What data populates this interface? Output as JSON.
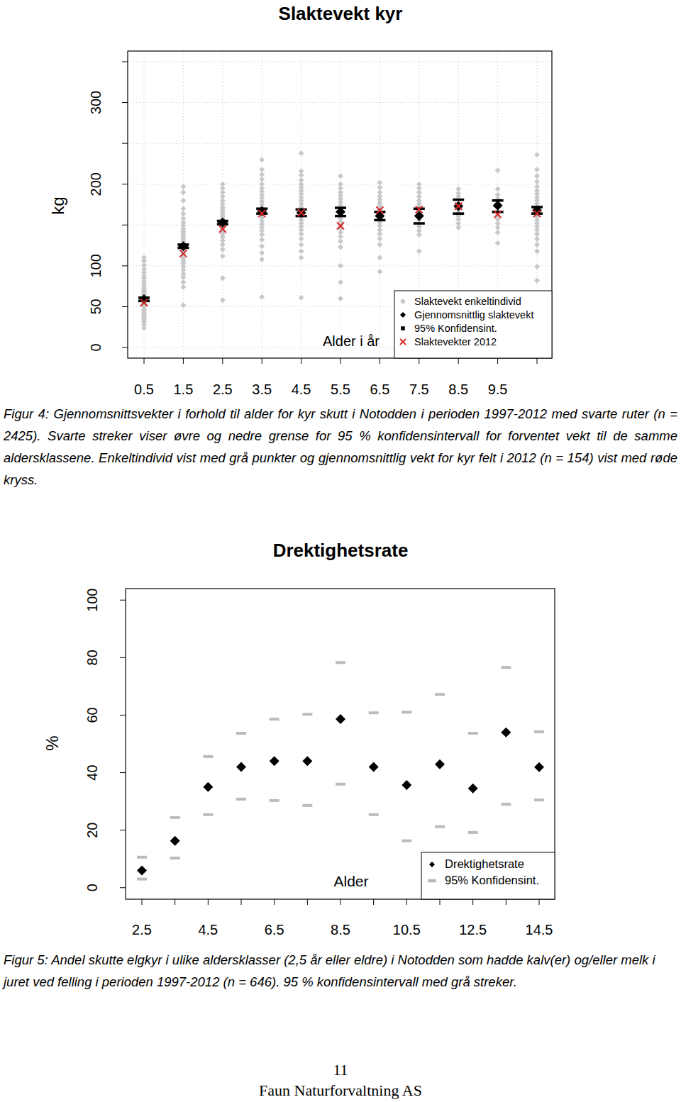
{
  "chart_data": [
    {
      "type": "scatter",
      "title": "Slaktevekt kyr",
      "ylabel": "kg",
      "xlabel": "Alder i år",
      "caption": "Figur 4: Gjennomsnittsvekter i forhold til alder for kyr skutt i Notodden i perioden 1997-2012 med svarte ruter (n = 2425). Svarte streker viser øvre og nedre grense for 95 % konfidensintervall for forventet vekt til de samme aldersklassene. Enkeltindivid vist med grå punkter og gjennomsnittlig vekt for kyr felt i 2012 (n = 154) vist med røde kryss.",
      "categories": [
        "0.5",
        "1.5",
        "2.5",
        "3.5",
        "4.5",
        "5.5",
        "6.5",
        "7.5",
        "8.5",
        "9.5",
        null
      ],
      "ylim": [
        -13,
        363
      ],
      "yticks": [
        0,
        50,
        100,
        {
          "value": 150,
          "label": null
        },
        200,
        {
          "value": 250,
          "label": null
        },
        300,
        {
          "value": 350,
          "label": null
        }
      ],
      "grid": true,
      "legend": "bottom right",
      "series": [
        {
          "name": "Slaktevekt enkeltindivid",
          "color": "#c8c8c8",
          "marker": "diamond",
          "values": [
            [
              24,
              28,
              31,
              34,
              37,
              40,
              42,
              45,
              47,
              50,
              52,
              54,
              56,
              58,
              60,
              62,
              64,
              66,
              68,
              70,
              72,
              75,
              78,
              81,
              85,
              88,
              92,
              96,
              101,
              106,
              110
            ],
            [
              52,
              74,
              80,
              86,
              90,
              95,
              99,
              103,
              106,
              109,
              112,
              115,
              118,
              121,
              124,
              127,
              130,
              133,
              136,
              139,
              142,
              145,
              149,
              153,
              158,
              164,
              170,
              180,
              190,
              197
            ],
            [
              58,
              85,
              112,
              120,
              126,
              131,
              135,
              139,
              142,
              145,
              148,
              151,
              154,
              157,
              160,
              163,
              166,
              169,
              172,
              176,
              180,
              185,
              190,
              195,
              200
            ],
            [
              62,
              108,
              116,
              124,
              132,
              138,
              143,
              147,
              151,
              155,
              159,
              163,
              167,
              171,
              175,
              179,
              183,
              187,
              191,
              195,
              200,
              206,
              212,
              218,
              230
            ],
            [
              61,
              110,
              118,
              126,
              133,
              139,
              144,
              148,
              152,
              156,
              160,
              164,
              168,
              172,
              176,
              180,
              184,
              188,
              192,
              196,
              200,
              205,
              211,
              216,
              238
            ],
            [
              60,
              80,
              100,
              123,
              130,
              136,
              141,
              146,
              150,
              154,
              158,
              162,
              166,
              170,
              174,
              178,
              182,
              186,
              190,
              195,
              200,
              210
            ],
            [
              93,
              110,
              126,
              133,
              139,
              144,
              149,
              153,
              157,
              161,
              165,
              169,
              173,
              177,
              181,
              185,
              190,
              196,
              202
            ],
            [
              118,
              138,
              143,
              148,
              152,
              156,
              160,
              164,
              168,
              172,
              176,
              180,
              185,
              190,
              195,
              200
            ],
            [
              147,
              152,
              157,
              161,
              165,
              169,
              173,
              177,
              181,
              185,
              189,
              194
            ],
            [
              128,
              141,
              147,
              152,
              157,
              162,
              167,
              172,
              177,
              182,
              187,
              194,
              217
            ],
            [
              82,
              99,
              118,
              126,
              133,
              139,
              144,
              148,
              152,
              156,
              160,
              164,
              168,
              172,
              176,
              180,
              184,
              188,
              192,
              197,
              203,
              210,
              218,
              236
            ]
          ]
        },
        {
          "name": "Gjennomsnittlig slaktevekt",
          "color": "#000000",
          "marker": "diamond",
          "values": [
            59,
            124,
            153,
            167,
            165,
            166,
            161,
            161,
            173,
            174,
            168
          ]
        },
        {
          "name": "95% Konfidensint.",
          "color": "#000000",
          "marker": "square",
          "lower": [
            57,
            122,
            151,
            164,
            161,
            161,
            156,
            152,
            164,
            166,
            164
          ],
          "upper": [
            61,
            126,
            155,
            170,
            169,
            171,
            166,
            170,
            181,
            180,
            172
          ]
        },
        {
          "name": "Slaktevekter 2012",
          "color": "#d62728",
          "marker": "x",
          "values": [
            55,
            115,
            145,
            164,
            165,
            149,
            168,
            169,
            173,
            163,
            164
          ]
        }
      ]
    },
    {
      "type": "scatter",
      "title": "Drektighetsrate",
      "ylabel": "%",
      "xlabel": "Alder",
      "caption": "Figur 5: Andel skutte elgkyr i ulike aldersklasser (2,5 år eller eldre) i Notodden som hadde kalv(er) og/eller melk i juret ved felling i perioden 1997-2012 (n = 646). 95 % konfidensintervall med grå streker.",
      "categories": [
        "2.5",
        null,
        "4.5",
        null,
        "6.5",
        null,
        "8.5",
        null,
        "10.5",
        null,
        "12.5",
        null,
        "14.5"
      ],
      "ylim": [
        -4,
        104
      ],
      "yticks": [
        0,
        20,
        40,
        60,
        80,
        100
      ],
      "grid": false,
      "legend": "bottom right",
      "series": [
        {
          "name": "Drektighetsrate",
          "color": "#000000",
          "marker": "diamond",
          "values": [
            6,
            16.3,
            35,
            42,
            44,
            44,
            58.6,
            42,
            35.7,
            42.9,
            34.5,
            54,
            41.9
          ]
        },
        {
          "name": "95% Konfidensint.",
          "color": "#bbbbbb",
          "marker": "dash",
          "lower": [
            3,
            10.3,
            25.4,
            30.8,
            30.3,
            28.6,
            36,
            25.4,
            16.3,
            21.2,
            19.2,
            29,
            30.5
          ],
          "upper": [
            10.6,
            24.4,
            45.6,
            53.7,
            58.6,
            60.3,
            78.3,
            60.8,
            61,
            67.2,
            53.7,
            76.6,
            54.2
          ]
        }
      ]
    }
  ],
  "page": {
    "page_number": "11",
    "footer": "Faun Naturforvaltning AS"
  }
}
